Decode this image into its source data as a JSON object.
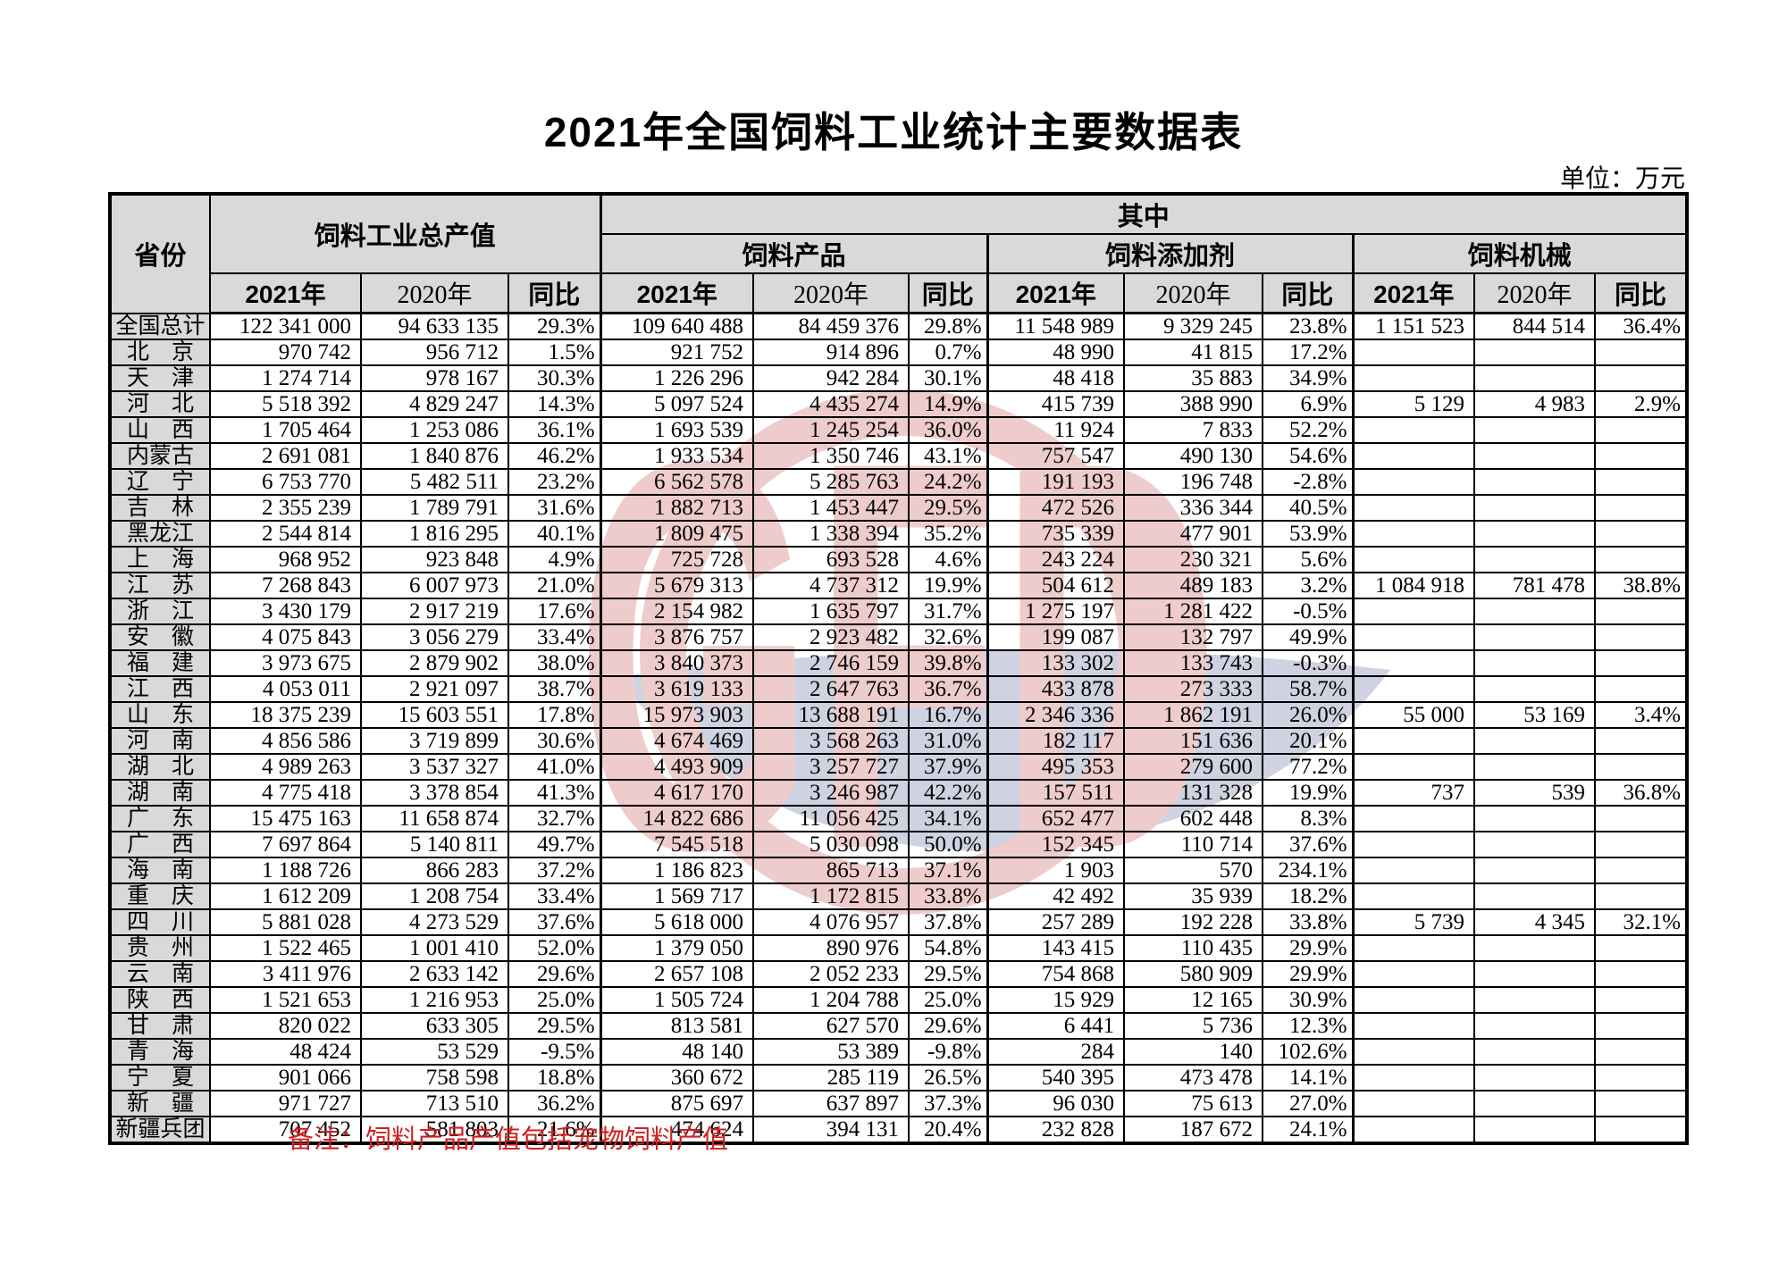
{
  "page": {
    "title": "2021年全国饲料工业统计主要数据表",
    "unit_label": "单位：万元",
    "note": "备注：饲料产品产值包括宠物饲料产值"
  },
  "colors": {
    "header_bg": "#d9d9d9",
    "grid_line": "#000000",
    "note_red": "#d02020",
    "watermark_pink": "#de8f8f",
    "watermark_blue": "#a9aec9"
  },
  "watermark": {
    "letters": "GFD"
  },
  "table": {
    "header": {
      "province": "省份",
      "total_group": "饲料工业总产值",
      "among_which": "其中",
      "subgroups": [
        "饲料产品",
        "饲料添加剂",
        "饲料机械"
      ],
      "year_cols": [
        "2021年",
        "2020年",
        "同比"
      ]
    },
    "rows": [
      {
        "province": "全国总计",
        "cells": [
          "122 341 000",
          "94 633 135",
          "29.3%",
          "109 640 488",
          "84 459 376",
          "29.8%",
          "11 548 989",
          "9 329 245",
          "23.8%",
          "1 151 523",
          "844 514",
          "36.4%"
        ]
      },
      {
        "province": "北　京",
        "cells": [
          "970 742",
          "956 712",
          "1.5%",
          "921 752",
          "914 896",
          "0.7%",
          "48 990",
          "41 815",
          "17.2%",
          "",
          "",
          ""
        ]
      },
      {
        "province": "天　津",
        "cells": [
          "1 274 714",
          "978 167",
          "30.3%",
          "1 226 296",
          "942 284",
          "30.1%",
          "48 418",
          "35 883",
          "34.9%",
          "",
          "",
          ""
        ]
      },
      {
        "province": "河　北",
        "cells": [
          "5 518 392",
          "4 829 247",
          "14.3%",
          "5 097 524",
          "4 435 274",
          "14.9%",
          "415 739",
          "388 990",
          "6.9%",
          "5 129",
          "4 983",
          "2.9%"
        ]
      },
      {
        "province": "山　西",
        "cells": [
          "1 705 464",
          "1 253 086",
          "36.1%",
          "1 693 539",
          "1 245 254",
          "36.0%",
          "11 924",
          "7 833",
          "52.2%",
          "",
          "",
          ""
        ]
      },
      {
        "province": "内蒙古",
        "cells": [
          "2 691 081",
          "1 840 876",
          "46.2%",
          "1 933 534",
          "1 350 746",
          "43.1%",
          "757 547",
          "490 130",
          "54.6%",
          "",
          "",
          ""
        ]
      },
      {
        "province": "辽　宁",
        "cells": [
          "6 753 770",
          "5 482 511",
          "23.2%",
          "6 562 578",
          "5 285 763",
          "24.2%",
          "191 193",
          "196 748",
          "-2.8%",
          "",
          "",
          ""
        ]
      },
      {
        "province": "吉　林",
        "cells": [
          "2 355 239",
          "1 789 791",
          "31.6%",
          "1 882 713",
          "1 453 447",
          "29.5%",
          "472 526",
          "336 344",
          "40.5%",
          "",
          "",
          ""
        ]
      },
      {
        "province": "黑龙江",
        "cells": [
          "2 544 814",
          "1 816 295",
          "40.1%",
          "1 809 475",
          "1 338 394",
          "35.2%",
          "735 339",
          "477 901",
          "53.9%",
          "",
          "",
          ""
        ]
      },
      {
        "province": "上　海",
        "cells": [
          "968 952",
          "923 848",
          "4.9%",
          "725 728",
          "693 528",
          "4.6%",
          "243 224",
          "230 321",
          "5.6%",
          "",
          "",
          ""
        ]
      },
      {
        "province": "江　苏",
        "cells": [
          "7 268 843",
          "6 007 973",
          "21.0%",
          "5 679 313",
          "4 737 312",
          "19.9%",
          "504 612",
          "489 183",
          "3.2%",
          "1 084 918",
          "781 478",
          "38.8%"
        ]
      },
      {
        "province": "浙　江",
        "cells": [
          "3 430 179",
          "2 917 219",
          "17.6%",
          "2 154 982",
          "1 635 797",
          "31.7%",
          "1 275 197",
          "1 281 422",
          "-0.5%",
          "",
          "",
          ""
        ]
      },
      {
        "province": "安　徽",
        "cells": [
          "4 075 843",
          "3 056 279",
          "33.4%",
          "3 876 757",
          "2 923 482",
          "32.6%",
          "199 087",
          "132 797",
          "49.9%",
          "",
          "",
          ""
        ]
      },
      {
        "province": "福　建",
        "cells": [
          "3 973 675",
          "2 879 902",
          "38.0%",
          "3 840 373",
          "2 746 159",
          "39.8%",
          "133 302",
          "133 743",
          "-0.3%",
          "",
          "",
          ""
        ]
      },
      {
        "province": "江　西",
        "cells": [
          "4 053 011",
          "2 921 097",
          "38.7%",
          "3 619 133",
          "2 647 763",
          "36.7%",
          "433 878",
          "273 333",
          "58.7%",
          "",
          "",
          ""
        ]
      },
      {
        "province": "山　东",
        "cells": [
          "18 375 239",
          "15 603 551",
          "17.8%",
          "15 973 903",
          "13 688 191",
          "16.7%",
          "2 346 336",
          "1 862 191",
          "26.0%",
          "55 000",
          "53 169",
          "3.4%"
        ]
      },
      {
        "province": "河　南",
        "cells": [
          "4 856 586",
          "3 719 899",
          "30.6%",
          "4 674 469",
          "3 568 263",
          "31.0%",
          "182 117",
          "151 636",
          "20.1%",
          "",
          "",
          ""
        ]
      },
      {
        "province": "湖　北",
        "cells": [
          "4 989 263",
          "3 537 327",
          "41.0%",
          "4 493 909",
          "3 257 727",
          "37.9%",
          "495 353",
          "279 600",
          "77.2%",
          "",
          "",
          ""
        ]
      },
      {
        "province": "湖　南",
        "cells": [
          "4 775 418",
          "3 378 854",
          "41.3%",
          "4 617 170",
          "3 246 987",
          "42.2%",
          "157 511",
          "131 328",
          "19.9%",
          "737",
          "539",
          "36.8%"
        ]
      },
      {
        "province": "广　东",
        "cells": [
          "15 475 163",
          "11 658 874",
          "32.7%",
          "14 822 686",
          "11 056 425",
          "34.1%",
          "652 477",
          "602 448",
          "8.3%",
          "",
          "",
          ""
        ]
      },
      {
        "province": "广　西",
        "cells": [
          "7 697 864",
          "5 140 811",
          "49.7%",
          "7 545 518",
          "5 030 098",
          "50.0%",
          "152 345",
          "110 714",
          "37.6%",
          "",
          "",
          ""
        ]
      },
      {
        "province": "海　南",
        "cells": [
          "1 188 726",
          "866 283",
          "37.2%",
          "1 186 823",
          "865 713",
          "37.1%",
          "1 903",
          "570",
          "234.1%",
          "",
          "",
          ""
        ]
      },
      {
        "province": "重　庆",
        "cells": [
          "1 612 209",
          "1 208 754",
          "33.4%",
          "1 569 717",
          "1 172 815",
          "33.8%",
          "42 492",
          "35 939",
          "18.2%",
          "",
          "",
          ""
        ]
      },
      {
        "province": "四　川",
        "cells": [
          "5 881 028",
          "4 273 529",
          "37.6%",
          "5 618 000",
          "4 076 957",
          "37.8%",
          "257 289",
          "192 228",
          "33.8%",
          "5 739",
          "4 345",
          "32.1%"
        ]
      },
      {
        "province": "贵　州",
        "cells": [
          "1 522 465",
          "1 001 410",
          "52.0%",
          "1 379 050",
          "890 976",
          "54.8%",
          "143 415",
          "110 435",
          "29.9%",
          "",
          "",
          ""
        ]
      },
      {
        "province": "云　南",
        "cells": [
          "3 411 976",
          "2 633 142",
          "29.6%",
          "2 657 108",
          "2 052 233",
          "29.5%",
          "754 868",
          "580 909",
          "29.9%",
          "",
          "",
          ""
        ]
      },
      {
        "province": "陕　西",
        "cells": [
          "1 521 653",
          "1 216 953",
          "25.0%",
          "1 505 724",
          "1 204 788",
          "25.0%",
          "15 929",
          "12 165",
          "30.9%",
          "",
          "",
          ""
        ]
      },
      {
        "province": "甘　肃",
        "cells": [
          "820 022",
          "633 305",
          "29.5%",
          "813 581",
          "627 570",
          "29.6%",
          "6 441",
          "5 736",
          "12.3%",
          "",
          "",
          ""
        ]
      },
      {
        "province": "青　海",
        "cells": [
          "48 424",
          "53 529",
          "-9.5%",
          "48 140",
          "53 389",
          "-9.8%",
          "284",
          "140",
          "102.6%",
          "",
          "",
          ""
        ]
      },
      {
        "province": "宁　夏",
        "cells": [
          "901 066",
          "758 598",
          "18.8%",
          "360 672",
          "285 119",
          "26.5%",
          "540 395",
          "473 478",
          "14.1%",
          "",
          "",
          ""
        ]
      },
      {
        "province": "新　疆",
        "cells": [
          "971 727",
          "713 510",
          "36.2%",
          "875 697",
          "637 897",
          "37.3%",
          "96 030",
          "75 613",
          "27.0%",
          "",
          "",
          ""
        ]
      },
      {
        "province": "新疆兵团",
        "cells": [
          "707 452",
          "581 803",
          "21.6%",
          "474 624",
          "394 131",
          "20.4%",
          "232 828",
          "187 672",
          "24.1%",
          "",
          "",
          ""
        ]
      }
    ]
  }
}
